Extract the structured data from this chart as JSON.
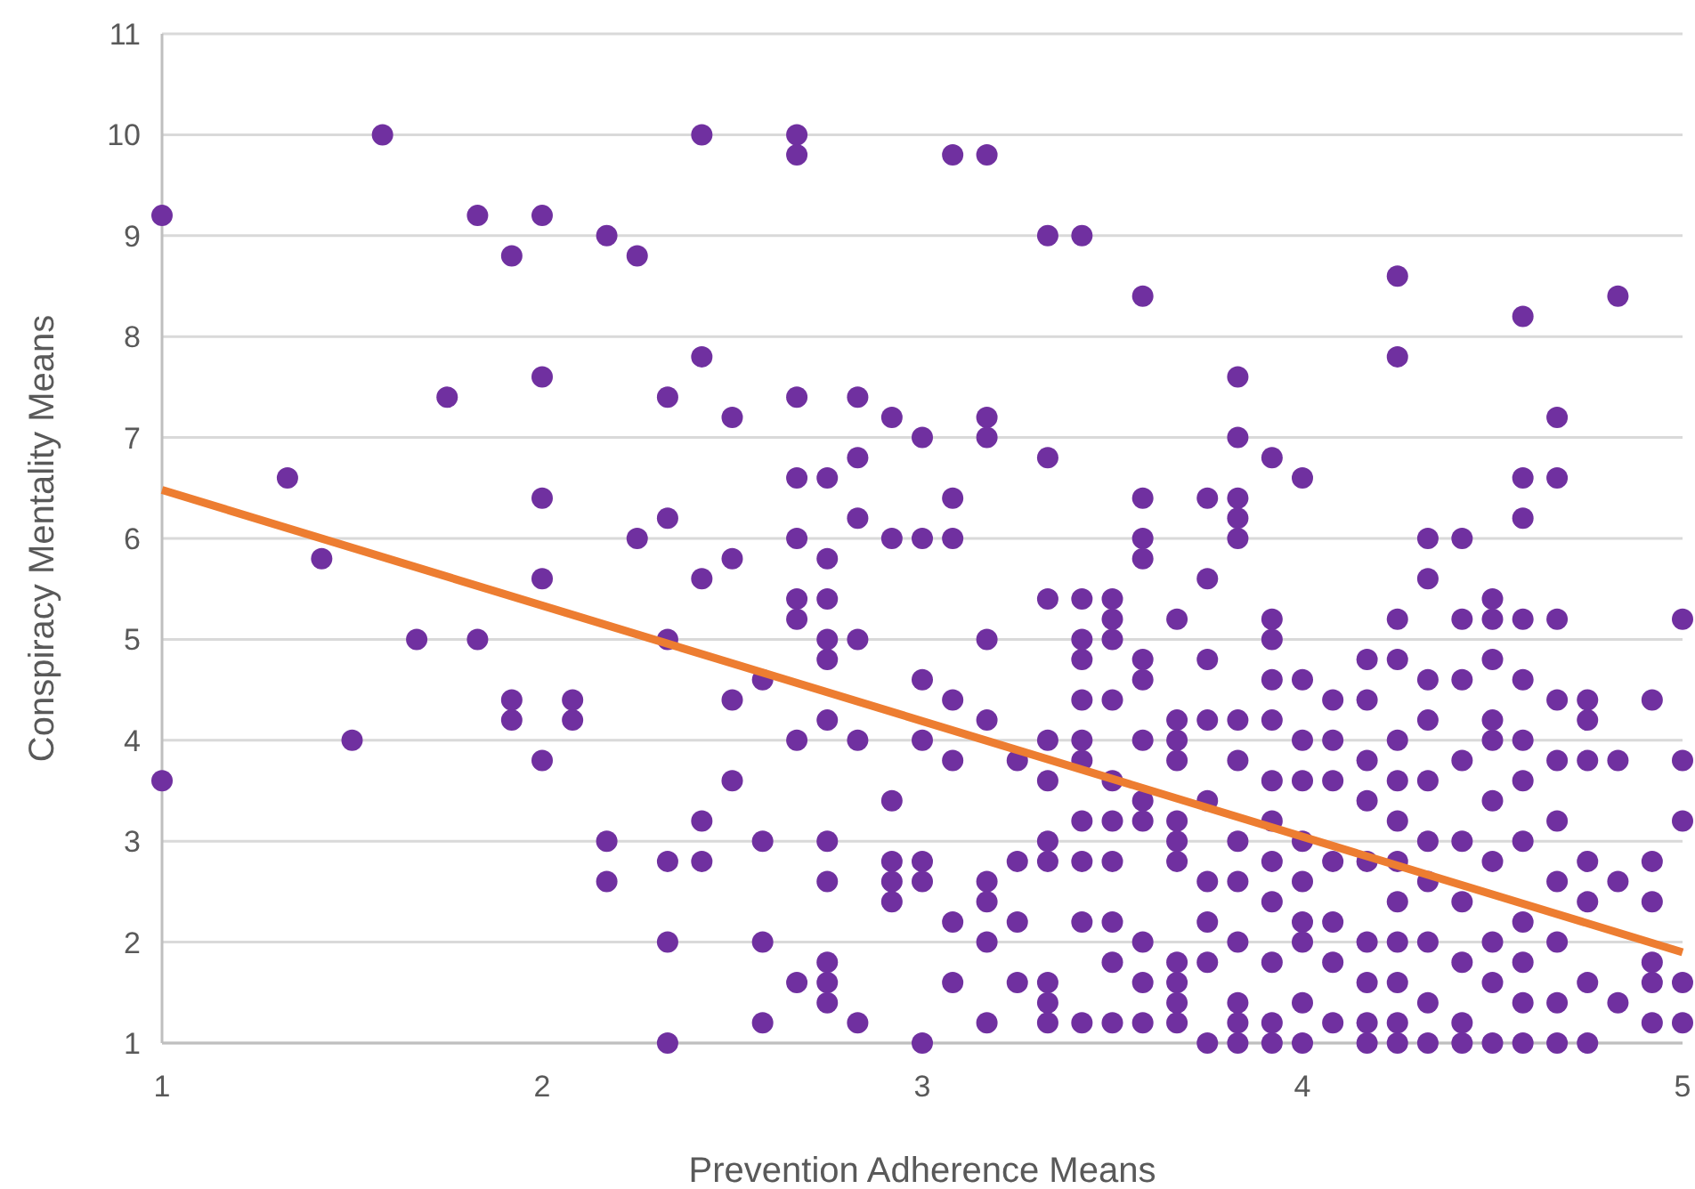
{
  "chart_data": {
    "type": "scatter",
    "xlabel": "Prevention Adherence Means",
    "ylabel": "Conspiracy Mentality Means",
    "xlim": [
      1,
      5
    ],
    "ylim": [
      1,
      11
    ],
    "xticks": [
      1,
      2,
      3,
      4,
      5
    ],
    "yticks": [
      1,
      2,
      3,
      4,
      5,
      6,
      7,
      8,
      9,
      10,
      11
    ],
    "grid": "y",
    "series": [
      {
        "color": "#7030a0",
        "marker": "circle",
        "x": [
          1,
          1,
          1.33,
          1.42,
          1.5,
          1.58,
          1.67,
          1.75,
          1.83,
          1.83,
          1.92,
          1.92,
          1.92,
          2,
          2,
          2,
          2,
          2,
          2.08,
          2.08,
          2.17,
          2.17,
          2.17,
          2.25,
          2.25,
          2.33,
          2.33,
          2.33,
          2.33,
          2.33,
          2.33,
          2.42,
          2.42,
          2.42,
          2.42,
          2.42,
          2.5,
          2.5,
          2.5,
          2.5,
          2.58,
          2.58,
          2.58,
          2.58,
          2.67,
          2.67,
          2.67,
          2.67,
          2.67,
          2.67,
          2.67,
          2.67,
          2.67,
          2.75,
          2.75,
          2.75,
          2.75,
          2.75,
          2.75,
          2.75,
          2.75,
          2.75,
          2.75,
          2.75,
          2.83,
          2.83,
          2.83,
          2.83,
          2.83,
          2.83,
          2.92,
          2.92,
          2.92,
          2.92,
          2.92,
          2.92,
          3,
          3,
          3,
          3,
          3,
          3,
          3,
          3.08,
          3.08,
          3.08,
          3.08,
          3.08,
          3.08,
          3.08,
          3.17,
          3.17,
          3.17,
          3.17,
          3.17,
          3.17,
          3.17,
          3.17,
          3.17,
          3.25,
          3.25,
          3.25,
          3.25,
          3.33,
          3.33,
          3.33,
          3.33,
          3.33,
          3.33,
          3.33,
          3.33,
          3.33,
          3.33,
          3.42,
          3.42,
          3.42,
          3.42,
          3.42,
          3.42,
          3.42,
          3.42,
          3.42,
          3.42,
          3.42,
          3.5,
          3.5,
          3.5,
          3.5,
          3.5,
          3.5,
          3.5,
          3.5,
          3.5,
          3.5,
          3.58,
          3.58,
          3.58,
          3.58,
          3.58,
          3.58,
          3.58,
          3.58,
          3.58,
          3.58,
          3.58,
          3.58,
          3.67,
          3.67,
          3.67,
          3.67,
          3.67,
          3.67,
          3.67,
          3.67,
          3.67,
          3.67,
          3.67,
          3.75,
          3.75,
          3.75,
          3.75,
          3.75,
          3.75,
          3.75,
          3.75,
          3.75,
          3.83,
          3.83,
          3.83,
          3.83,
          3.83,
          3.83,
          3.83,
          3.83,
          3.83,
          3.83,
          3.83,
          3.83,
          3.83,
          3.92,
          3.92,
          3.92,
          3.92,
          3.92,
          3.92,
          3.92,
          3.92,
          3.92,
          3.92,
          3.92,
          3.92,
          4,
          4,
          4,
          4,
          4,
          4,
          4,
          4,
          4,
          4,
          4.08,
          4.08,
          4.08,
          4.08,
          4.08,
          4.08,
          4.08,
          4.17,
          4.17,
          4.17,
          4.17,
          4.17,
          4.17,
          4.17,
          4.17,
          4.17,
          4.25,
          4.25,
          4.25,
          4.25,
          4.25,
          4.25,
          4.25,
          4.25,
          4.25,
          4.25,
          4.25,
          4.25,
          4.25,
          4.33,
          4.33,
          4.33,
          4.33,
          4.33,
          4.33,
          4.33,
          4.33,
          4.33,
          4.33,
          4.42,
          4.42,
          4.42,
          4.42,
          4.42,
          4.42,
          4.42,
          4.42,
          4.42,
          4.5,
          4.5,
          4.5,
          4.5,
          4.5,
          4.5,
          4.5,
          4.5,
          4.5,
          4.5,
          4.58,
          4.58,
          4.58,
          4.58,
          4.58,
          4.58,
          4.58,
          4.58,
          4.58,
          4.58,
          4.58,
          4.58,
          4.67,
          4.67,
          4.67,
          4.67,
          4.67,
          4.67,
          4.67,
          4.67,
          4.67,
          4.67,
          4.75,
          4.75,
          4.75,
          4.75,
          4.75,
          4.75,
          4.75,
          4.83,
          4.83,
          4.83,
          4.83,
          4.92,
          4.92,
          4.92,
          4.92,
          4.92,
          4.92,
          5,
          5,
          5,
          5,
          5
        ],
        "values": [
          9.2,
          3.6,
          6.6,
          5.8,
          4,
          10,
          5,
          7.4,
          9.2,
          5,
          8.8,
          4.4,
          4.2,
          9.2,
          7.6,
          6.4,
          5.6,
          3.8,
          4.4,
          4.2,
          9,
          3,
          2.6,
          8.8,
          6,
          7.4,
          6.2,
          5,
          2.8,
          2,
          1,
          10,
          7.8,
          5.6,
          3.2,
          2.8,
          7.2,
          5.8,
          4.4,
          3.6,
          4.6,
          3,
          2,
          1.2,
          10,
          9.8,
          7.4,
          6.6,
          6,
          5.4,
          5.2,
          4,
          1.6,
          6.6,
          5.8,
          5.4,
          5,
          4.8,
          4.2,
          3,
          2.6,
          1.8,
          1.6,
          1.4,
          7.4,
          6.8,
          6.2,
          5,
          4,
          1.2,
          7.2,
          6,
          3.4,
          2.8,
          2.6,
          2.4,
          7,
          6,
          4.6,
          4,
          2.8,
          2.6,
          1,
          9.8,
          6.4,
          6,
          4.4,
          3.8,
          2.2,
          1.6,
          9.8,
          7.2,
          7,
          5,
          4.2,
          2.6,
          2.4,
          2,
          1.2,
          3.8,
          2.8,
          2.2,
          1.6,
          9,
          6.8,
          5.4,
          4,
          3.6,
          3,
          2.8,
          1.6,
          1.4,
          1.2,
          9,
          5.4,
          5,
          4.8,
          4.4,
          4,
          3.8,
          3.2,
          2.8,
          2.2,
          1.2,
          5.4,
          5.2,
          5,
          4.4,
          3.6,
          3.2,
          2.8,
          2.2,
          1.8,
          1.2,
          8.4,
          6.4,
          6,
          5.8,
          4.8,
          4.6,
          4,
          3.4,
          3.2,
          2,
          1.6,
          1.2,
          5.2,
          4.2,
          4,
          3.8,
          3.2,
          3,
          2.8,
          1.8,
          1.6,
          1.4,
          1.2,
          6.4,
          5.6,
          4.8,
          4.2,
          3.4,
          2.6,
          2.2,
          1.8,
          1,
          7.6,
          7,
          6.4,
          6.2,
          6,
          4.2,
          3.8,
          3,
          2.6,
          2,
          1.4,
          1.2,
          1,
          6.8,
          5.2,
          5,
          4.6,
          4.2,
          3.6,
          3.2,
          2.8,
          2.4,
          1.8,
          1.2,
          1,
          6.6,
          4.6,
          4,
          3.6,
          3,
          2.6,
          2.2,
          2,
          1.4,
          1,
          4.4,
          4,
          3.6,
          2.8,
          2.2,
          1.8,
          1.2,
          4.8,
          4.4,
          3.8,
          3.4,
          2.8,
          2,
          1.6,
          1.2,
          1,
          8.6,
          7.8,
          5.2,
          4.8,
          4,
          3.6,
          3.2,
          2.8,
          2.4,
          2,
          1.6,
          1.2,
          1,
          6,
          5.6,
          4.6,
          4.2,
          3.6,
          3,
          2.6,
          2,
          1.4,
          1,
          6,
          5.2,
          4.6,
          3.8,
          3,
          2.4,
          1.8,
          1.2,
          1,
          5.4,
          5.2,
          4.8,
          4.2,
          4,
          3.4,
          2.8,
          2,
          1.6,
          1,
          8.2,
          6.6,
          6.2,
          5.2,
          4.6,
          4,
          3.6,
          3,
          2.2,
          1.8,
          1.4,
          1,
          7.2,
          6.6,
          5.2,
          4.4,
          3.8,
          3.2,
          2.6,
          2,
          1.4,
          1,
          4.4,
          4.2,
          3.8,
          2.8,
          2.4,
          1.6,
          1,
          8.4,
          3.8,
          2.6,
          1.4,
          4.4,
          2.8,
          2.4,
          1.8,
          1.6,
          1.2,
          5.2,
          3.8,
          3.2,
          1.6,
          1.2
        ]
      },
      {
        "type": "line",
        "color": "#ed7d31",
        "marker": "none",
        "x": [
          1,
          5
        ],
        "values": [
          6.48,
          1.9
        ]
      }
    ]
  }
}
